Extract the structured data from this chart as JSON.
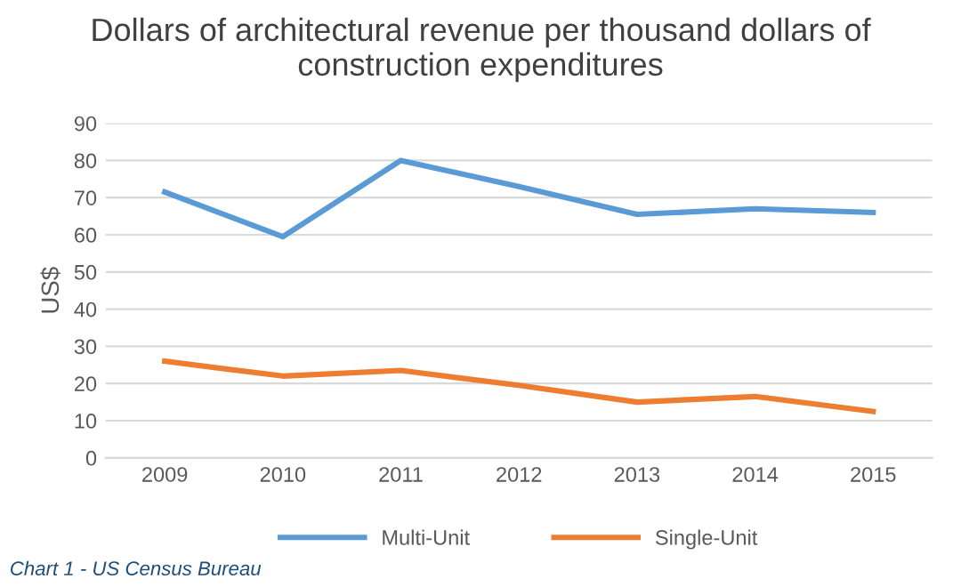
{
  "chart_data": {
    "type": "line",
    "title": "Dollars of architectural revenue per thousand dollars of construction expenditures",
    "ylabel": "US$",
    "categories": [
      "2009",
      "2010",
      "2011",
      "2012",
      "2013",
      "2014",
      "2015"
    ],
    "series": [
      {
        "name": "Multi-Unit",
        "color": "#5b9bd5",
        "values": [
          71.5,
          59.5,
          80,
          73,
          65.5,
          67,
          66
        ]
      },
      {
        "name": "Single-Unit",
        "color": "#ed7d31",
        "values": [
          26,
          22,
          23.5,
          19.5,
          15,
          16.5,
          12.5
        ]
      }
    ],
    "ylim": [
      0,
      90
    ],
    "yticks": [
      0,
      10,
      20,
      30,
      40,
      50,
      60,
      70,
      80,
      90
    ],
    "grid": "y",
    "legend": "bottom",
    "marker": "none",
    "line_style": "solid",
    "annotations": [
      "Chart 1 - US Census Bureau"
    ]
  }
}
